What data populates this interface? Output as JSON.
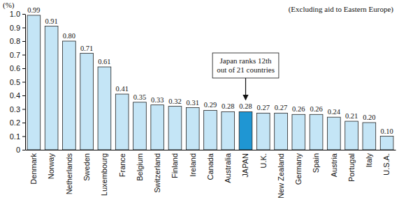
{
  "chart_data": {
    "type": "bar",
    "subtitle": "(Excluding aid to Eastern Europe)",
    "ylabel": "(%)",
    "categories": [
      "Denmark",
      "Norway",
      "Netherlands",
      "Sweden",
      "Luxembourg",
      "France",
      "Belgium",
      "Switzerland",
      "Finland",
      "Ireland",
      "Canada",
      "Australia",
      "JAPAN",
      "U.K.",
      "New Zealand",
      "Germany",
      "Spain",
      "Austria",
      "Portugal",
      "Italy",
      "U.S.A."
    ],
    "values": [
      0.99,
      0.91,
      0.8,
      0.71,
      0.61,
      0.41,
      0.35,
      0.33,
      0.32,
      0.31,
      0.29,
      0.28,
      0.28,
      0.27,
      0.27,
      0.26,
      0.26,
      0.24,
      0.21,
      0.2,
      0.1
    ],
    "value_labels": [
      "0.99",
      "0.91",
      "0.80",
      "0.71",
      "0.61",
      "0.41",
      "0.35",
      "0.33",
      "0.32",
      "0.31",
      "0.29",
      "0.28",
      "0.28",
      "0.27",
      "0.27",
      "0.26",
      "0.26",
      "0.24",
      "0.21",
      "0.20",
      "0.10"
    ],
    "colors": [
      "#c4e5f6",
      "#c4e5f6",
      "#c4e5f6",
      "#c4e5f6",
      "#c4e5f6",
      "#c4e5f6",
      "#c4e5f6",
      "#c4e5f6",
      "#c4e5f6",
      "#c4e5f6",
      "#c4e5f6",
      "#c4e5f6",
      "#1f96d3",
      "#c4e5f6",
      "#c4e5f6",
      "#c4e5f6",
      "#c4e5f6",
      "#c4e5f6",
      "#c4e5f6",
      "#c4e5f6",
      "#c4e5f6"
    ],
    "ylim": [
      0,
      1
    ],
    "yticks": [
      0,
      0.1,
      0.2,
      0.3,
      0.4,
      0.5,
      0.6,
      0.7,
      0.8,
      0.9,
      {
        "value": 1,
        "label": "1.0"
      }
    ],
    "grid": false,
    "data_labels": true,
    "annotations": [
      {
        "lines": [
          "Japan ranks 12th",
          "out of 21 countries"
        ],
        "target": "JAPAN"
      }
    ]
  }
}
